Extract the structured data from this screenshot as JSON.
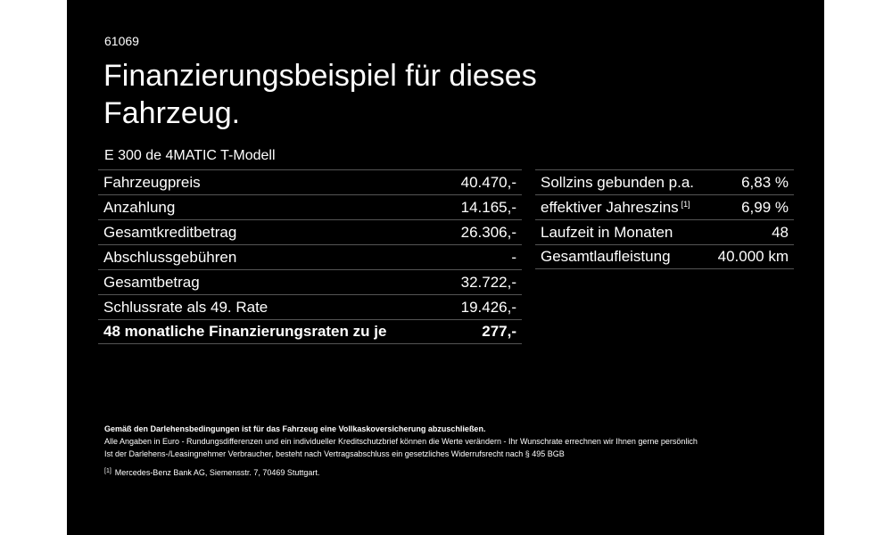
{
  "offer_id": "61069",
  "headline": {
    "line1": "Finanzierungsbeispiel für dieses",
    "line2": "Fahrzeug."
  },
  "model": "E 300 de 4MATIC T-Modell",
  "left_table": [
    {
      "label": "Fahrzeugpreis",
      "value": "40.470,-"
    },
    {
      "label": "Anzahlung",
      "value": "14.165,-"
    },
    {
      "label": "Gesamtkreditbetrag",
      "value": "26.306,-"
    },
    {
      "label": "Abschlussgebühren",
      "value": "-"
    },
    {
      "label": "Gesamtbetrag",
      "value": "32.722,-"
    },
    {
      "label": "Schlussrate als 49. Rate",
      "value": "19.426,-"
    },
    {
      "label": "48 monatliche Finanzierungsraten zu je",
      "value": "277,-"
    }
  ],
  "right_table": [
    {
      "label": "Sollzins gebunden p.a.",
      "value": "6,83 %"
    },
    {
      "label": "effektiver Jahreszins",
      "ref": "[1]",
      "value": "6,99 %"
    },
    {
      "label": "Laufzeit in Monaten",
      "value": "48"
    },
    {
      "label": "Gesamtlaufleistung",
      "value": "40.000 km"
    }
  ],
  "notes": {
    "insurance": "Gemäß den Darlehensbedingungen ist für das Fahrzeug eine Vollkaskoversicherung abzuschließen.",
    "line1": "Alle Angaben in Euro - Rundungsdifferenzen und ein individueller Kreditschutzbrief können die Werte verändern - Ihr Wunschrate errechnen wir Ihnen gerne persönlich",
    "line2": "Ist der Darlehens-/Leasingnehmer Verbraucher, besteht nach Vertragsabschluss ein gesetzliches Widerrufsrecht nach § 495 BGB",
    "footnote_ref": "[1]",
    "footnote_text": "Mercedes-Benz Bank AG, Siemensstr. 7, 70469 Stuttgart."
  }
}
